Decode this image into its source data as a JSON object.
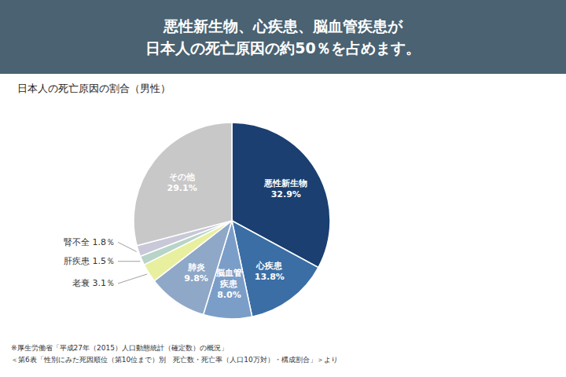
{
  "chart_data": {
    "type": "pie",
    "title": "悪性新生物、心疾患、脳血管疾患が\n日本人の死亡原因の約50％を占めます。",
    "subtitle": "日本人の死亡原因の割合（男性）",
    "categories": [
      "悪性新生物",
      "心疾患",
      "脳血管\n疾患",
      "肺炎",
      "老衰",
      "肝疾患",
      "腎不全",
      "その他"
    ],
    "values": [
      32.9,
      13.8,
      8.0,
      9.8,
      3.1,
      1.5,
      1.8,
      29.1
    ],
    "value_labels": [
      "32.9%",
      "13.8%",
      "8.0%",
      "9.8%",
      "3.1％",
      "1.5％",
      "1.8％",
      "29.1%"
    ],
    "colors": [
      "#1a3f70",
      "#3a6ea5",
      "#7b9ec8",
      "#8fa8c8",
      "#e8ef9e",
      "#b8d4c8",
      "#c8c8d8",
      "#c8c8c8"
    ],
    "data_labels": true,
    "annotations": [
      "※厚生労働省「平成27年（2015）人口動態統計（確定数）の概況」",
      "＜第6表「性別にみた死因順位（第10位まで）別　死亡数・死亡率（人口10万対）・構成割合」＞より"
    ]
  }
}
